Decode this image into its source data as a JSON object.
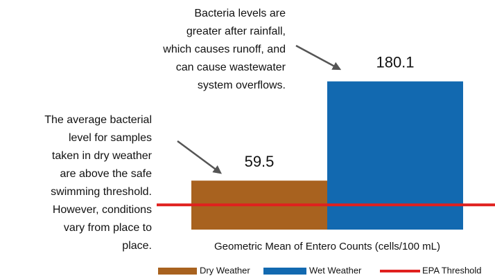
{
  "chart_data": {
    "type": "bar",
    "categories": [
      "Dry Weather",
      "Wet Weather"
    ],
    "values": [
      59.5,
      180.1
    ],
    "colors": [
      "#a8621f",
      "#1269b0"
    ],
    "ylim": [
      0,
      200
    ],
    "x_label": "Geometric Mean of Entero Counts (cells/100 mL)",
    "threshold": {
      "name": "EPA Threshold",
      "value": 30,
      "color": "#e0201e"
    },
    "annotations": [
      [
        "Bacteria levels are",
        "greater after rainfall,",
        "which causes runoff, and",
        "can cause wastewater",
        "system overflows."
      ],
      [
        "The average bacterial",
        "level for samples",
        "taken in dry weather",
        "are above the  safe",
        "swimming threshold.",
        "However, conditions",
        "vary from place to",
        "place."
      ]
    ]
  }
}
